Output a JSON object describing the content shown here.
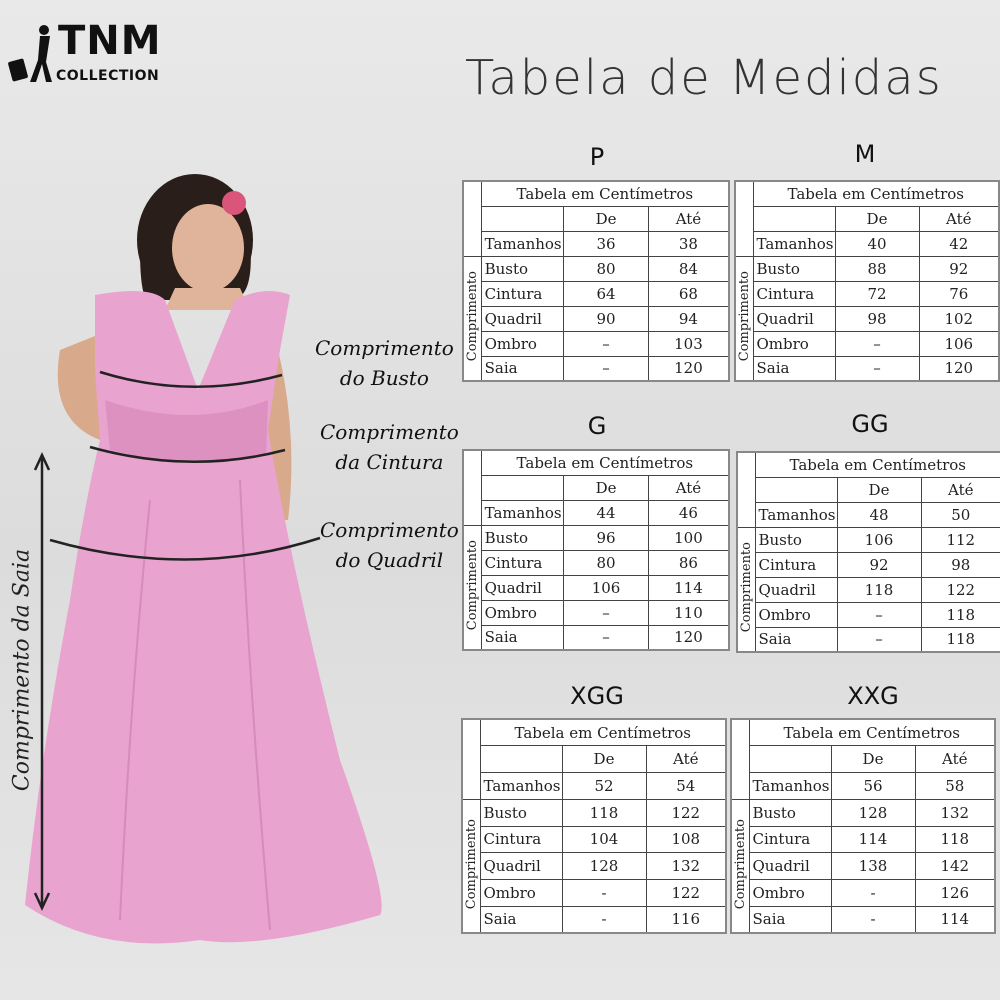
{
  "logo": {
    "brand": "TNM",
    "sub": "COLLECTION"
  },
  "title": "Tabela de Medidas",
  "measure_labels": [
    [
      "Comprimento",
      "do Busto"
    ],
    [
      "Comprimento",
      "da Cintura"
    ],
    [
      "Comprimento",
      "do Quadril"
    ]
  ],
  "skirt_label": "Comprimento da Saia",
  "tables": [
    {
      "size": "P",
      "caption": "Tabela em Centímetros",
      "columns": [
        "De",
        "Até"
      ],
      "group": "Comprimento",
      "rows": [
        [
          "Tamanhos",
          36,
          38
        ],
        [
          "Busto",
          80,
          84
        ],
        [
          "Cintura",
          64,
          68
        ],
        [
          "Quadril",
          90,
          94
        ],
        [
          "Ombro",
          "–",
          103
        ],
        [
          "Saia",
          "–",
          120
        ]
      ]
    },
    {
      "size": "M",
      "caption": "Tabela em Centímetros",
      "columns": [
        "De",
        "Até"
      ],
      "group": "Comprimento",
      "rows": [
        [
          "Tamanhos",
          40,
          42
        ],
        [
          "Busto",
          88,
          92
        ],
        [
          "Cintura",
          72,
          76
        ],
        [
          "Quadril",
          98,
          102
        ],
        [
          "Ombro",
          "–",
          106
        ],
        [
          "Saia",
          "–",
          120
        ]
      ]
    },
    {
      "size": "G",
      "caption": "Tabela em Centímetros",
      "columns": [
        "De",
        "Até"
      ],
      "group": "Comprimento",
      "rows": [
        [
          "Tamanhos",
          44,
          46
        ],
        [
          "Busto",
          96,
          100
        ],
        [
          "Cintura",
          80,
          86
        ],
        [
          "Quadril",
          106,
          114
        ],
        [
          "Ombro",
          "–",
          110
        ],
        [
          "Saia",
          "–",
          120
        ]
      ]
    },
    {
      "size": "GG",
      "caption": "Tabela em Centímetros",
      "columns": [
        "De",
        "Até"
      ],
      "group": "Comprimento",
      "rows": [
        [
          "Tamanhos",
          48,
          50
        ],
        [
          "Busto",
          106,
          112
        ],
        [
          "Cintura",
          92,
          98
        ],
        [
          "Quadril",
          118,
          122
        ],
        [
          "Ombro",
          "–",
          118
        ],
        [
          "Saia",
          "–",
          118
        ]
      ]
    },
    {
      "size": "XGG",
      "caption": "Tabela em Centímetros",
      "columns": [
        "De",
        "Até"
      ],
      "group": "Comprimento",
      "rows": [
        [
          "Tamanhos",
          52,
          54
        ],
        [
          "Busto",
          118,
          122
        ],
        [
          "Cintura",
          104,
          108
        ],
        [
          "Quadril",
          128,
          132
        ],
        [
          "Ombro",
          "-",
          122
        ],
        [
          "Saia",
          "-",
          116
        ]
      ]
    },
    {
      "size": "XXG",
      "caption": "Tabela em Centímetros",
      "columns": [
        "De",
        "Até"
      ],
      "group": "Comprimento",
      "rows": [
        [
          "Tamanhos",
          56,
          58
        ],
        [
          "Busto",
          128,
          132
        ],
        [
          "Cintura",
          114,
          118
        ],
        [
          "Quadril",
          138,
          142
        ],
        [
          "Ombro",
          "-",
          126
        ],
        [
          "Saia",
          "-",
          114
        ]
      ]
    }
  ]
}
